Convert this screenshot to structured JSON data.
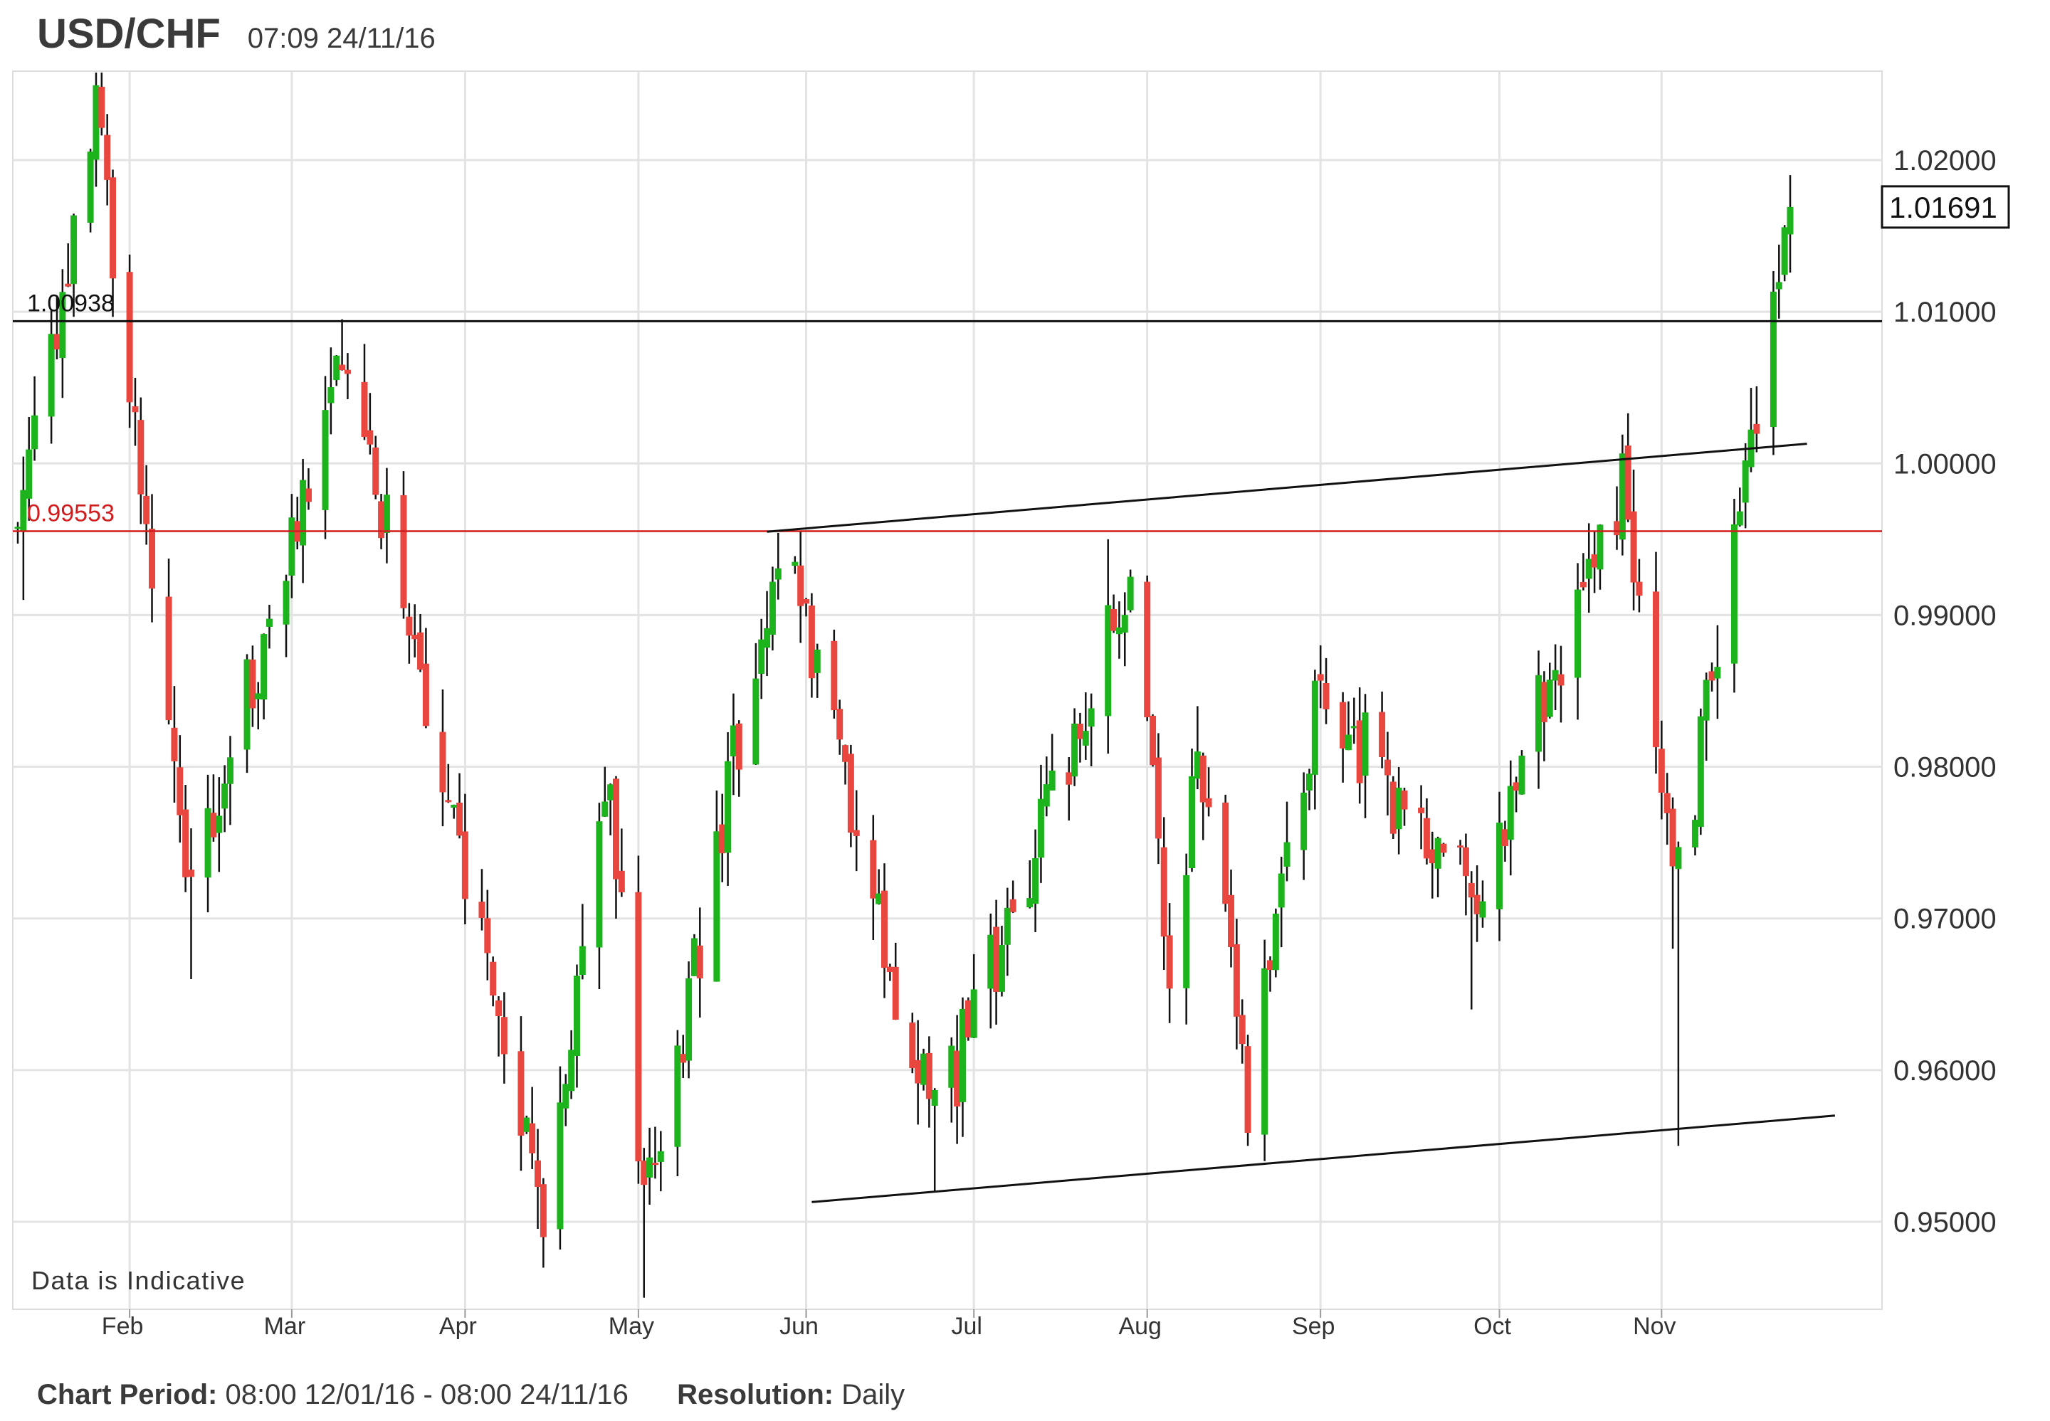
{
  "header": {
    "symbol": "USD/CHF",
    "timestamp": "07:09 24/11/16"
  },
  "footer": {
    "period_label": "Chart Period:",
    "period_value": "08:00 12/01/16 - 08:00 24/11/16",
    "resolution_label": "Resolution:",
    "resolution_value": "Daily"
  },
  "colors": {
    "up": "#1db31d",
    "down": "#e8463e",
    "wick": "#111111",
    "grid": "#e3e3e3",
    "resistance": "#d11d1d"
  },
  "chart_data": {
    "type": "candlestick",
    "ylim": [
      0.9445,
      1.0255
    ],
    "y_ticks": [
      "0.95000",
      "0.96000",
      "0.97000",
      "0.98000",
      "0.99000",
      "1.00000",
      "1.01000",
      "1.02000"
    ],
    "x_tick_labels": [
      "Feb",
      "Mar",
      "Apr",
      "May",
      "Jun",
      "Jul",
      "Aug",
      "Sep",
      "Oct",
      "Nov"
    ],
    "x_ticks_dates": [
      "2016-02-01",
      "2016-03-01",
      "2016-04-01",
      "2016-05-02",
      "2016-06-01",
      "2016-07-01",
      "2016-08-01",
      "2016-09-01",
      "2016-10-03",
      "2016-11-01"
    ],
    "date_range": [
      "2016-01-12",
      "2016-11-24"
    ],
    "current_price": "1.01691",
    "annotation": "Data is Indicative",
    "horizontal_lines": [
      {
        "value": 1.00938,
        "label": "1.00938",
        "color": "#111111"
      },
      {
        "value": 0.99553,
        "label": "0.99553",
        "color": "#d11d1d"
      }
    ],
    "trendlines": [
      {
        "start": [
          "2016-05-25",
          0.9955
        ],
        "end": [
          "2016-11-27",
          1.0013
        ]
      },
      {
        "start": [
          "2016-06-02",
          0.9513
        ],
        "end": [
          "2016-12-02",
          0.957
        ]
      }
    ],
    "segments": [
      {
        "start": "2016-01-12",
        "end": "2016-01-26",
        "high": 1.0255,
        "low": 0.991,
        "from": 0.996,
        "to": 1.023
      },
      {
        "start": "2016-01-26",
        "end": "2016-02-12",
        "high": 1.023,
        "low": 0.966,
        "from": 1.023,
        "to": 0.972
      },
      {
        "start": "2016-02-12",
        "end": "2016-03-11",
        "high": 1.0095,
        "low": 0.98,
        "from": 0.972,
        "to": 1.007
      },
      {
        "start": "2016-03-11",
        "end": "2016-04-15",
        "high": 1.007,
        "low": 0.95,
        "from": 1.007,
        "to": 0.951
      },
      {
        "start": "2016-04-15",
        "end": "2016-04-27",
        "high": 0.98,
        "low": 0.951,
        "from": 0.951,
        "to": 0.979
      },
      {
        "start": "2016-04-27",
        "end": "2016-05-03",
        "high": 0.979,
        "low": 0.945,
        "from": 0.979,
        "to": 0.95
      },
      {
        "start": "2016-05-03",
        "end": "2016-05-27",
        "high": 0.995,
        "low": 0.95,
        "from": 0.95,
        "to": 0.995
      },
      {
        "start": "2016-05-27",
        "end": "2016-06-24",
        "high": 0.995,
        "low": 0.952,
        "from": 0.995,
        "to": 0.956
      },
      {
        "start": "2016-06-24",
        "end": "2016-07-29",
        "high": 0.995,
        "low": 0.956,
        "from": 0.956,
        "to": 0.993
      },
      {
        "start": "2016-07-29",
        "end": "2016-08-05",
        "high": 0.993,
        "low": 0.964,
        "from": 0.993,
        "to": 0.966
      },
      {
        "start": "2016-08-05",
        "end": "2016-08-10",
        "high": 0.984,
        "low": 0.966,
        "from": 0.966,
        "to": 0.982
      },
      {
        "start": "2016-08-10",
        "end": "2016-08-19",
        "high": 0.983,
        "low": 0.955,
        "from": 0.982,
        "to": 0.958
      },
      {
        "start": "2016-08-19",
        "end": "2016-09-01",
        "high": 0.988,
        "low": 0.954,
        "from": 0.958,
        "to": 0.985
      },
      {
        "start": "2016-09-01",
        "end": "2016-09-28",
        "high": 0.985,
        "low": 0.964,
        "from": 0.985,
        "to": 0.971
      },
      {
        "start": "2016-09-28",
        "end": "2016-10-25",
        "high": 1.0,
        "low": 0.965,
        "from": 0.971,
        "to": 0.999
      },
      {
        "start": "2016-10-25",
        "end": "2016-11-04",
        "high": 1.0,
        "low": 0.968,
        "from": 0.999,
        "to": 0.972
      },
      {
        "start": "2016-11-04",
        "end": "2016-11-24",
        "high": 1.018,
        "low": 0.955,
        "from": 0.972,
        "to": 1.0169
      }
    ]
  }
}
